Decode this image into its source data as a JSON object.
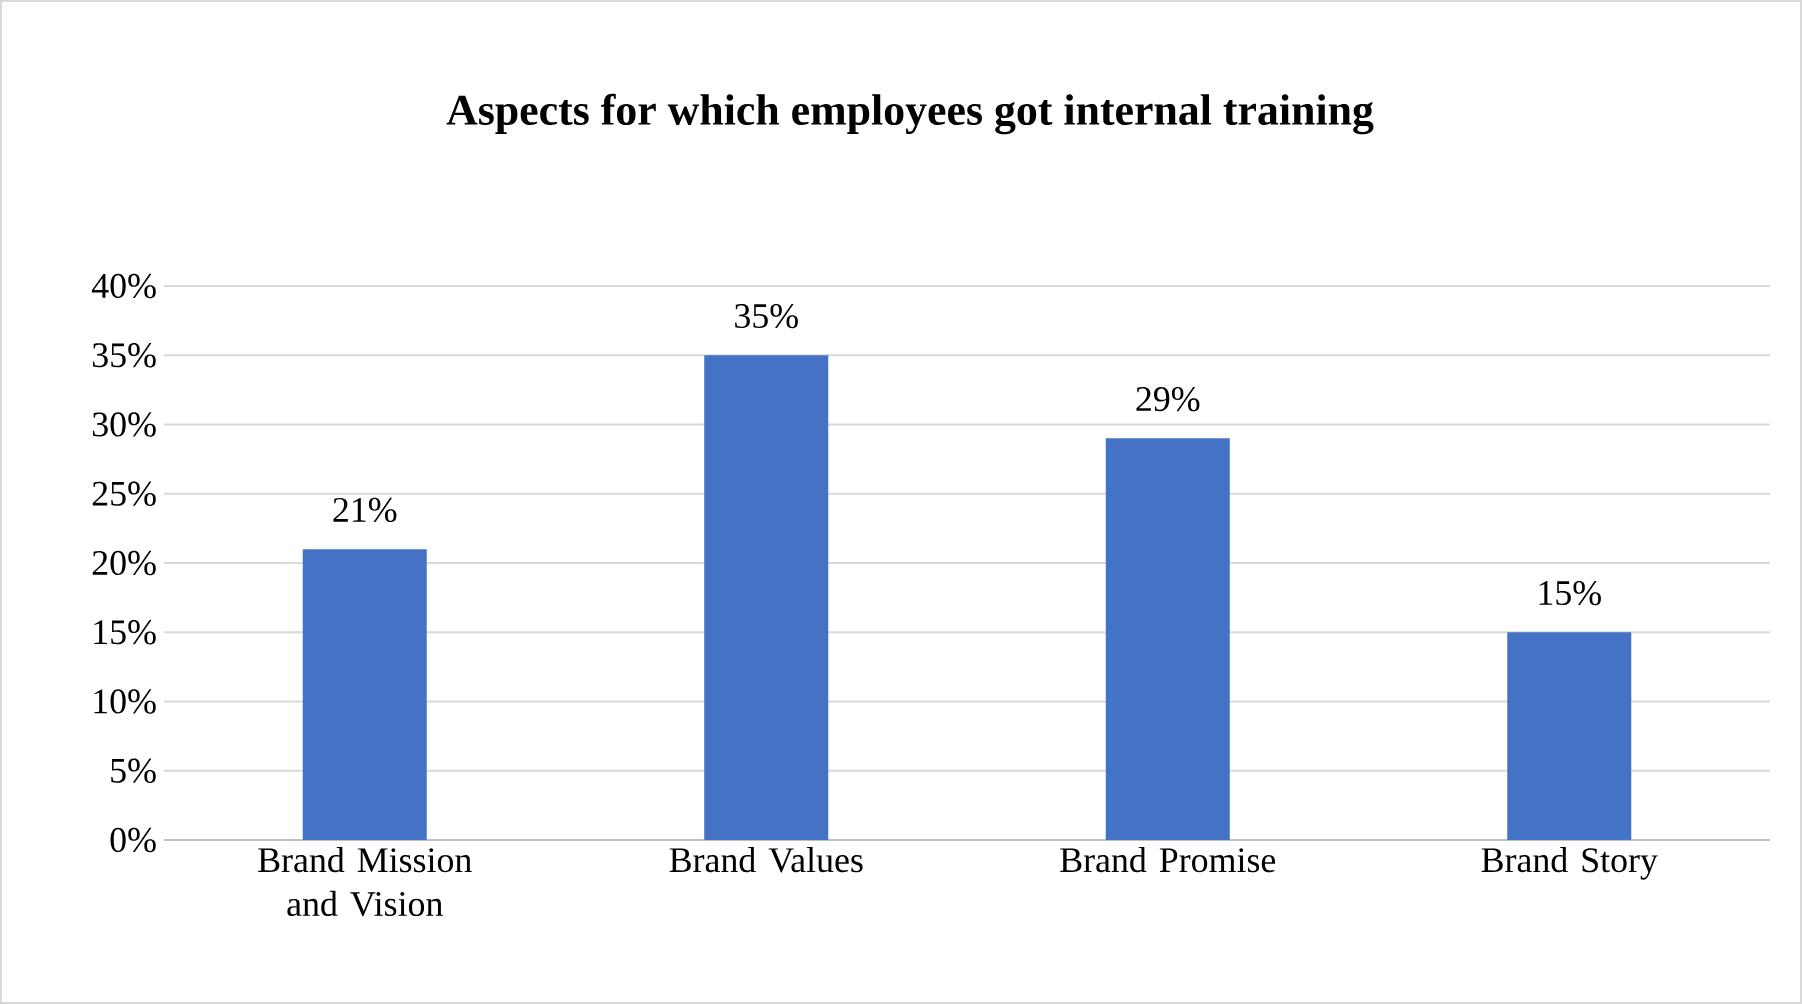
{
  "chart_data": {
    "type": "bar",
    "title": "Aspects for which employees got internal training",
    "categories": [
      "Brand Mission and Vision",
      "Brand Values",
      "Brand Promise",
      "Brand Story"
    ],
    "values": [
      21,
      35,
      29,
      15
    ],
    "value_labels": [
      "21%",
      "35%",
      "29%",
      "15%"
    ],
    "color": "#4472c4",
    "ylim": [
      0,
      40
    ],
    "yticks": [
      {
        "value": 0,
        "label": "0%"
      },
      {
        "value": 5,
        "label": "5%"
      },
      {
        "value": 10,
        "label": "10%"
      },
      {
        "value": 15,
        "label": "15%"
      },
      {
        "value": 20,
        "label": "20%"
      },
      {
        "value": 25,
        "label": "25%"
      },
      {
        "value": 30,
        "label": "30%"
      },
      {
        "value": 35,
        "label": "35%"
      },
      {
        "value": 40,
        "label": "40%"
      }
    ],
    "grid": "y"
  }
}
